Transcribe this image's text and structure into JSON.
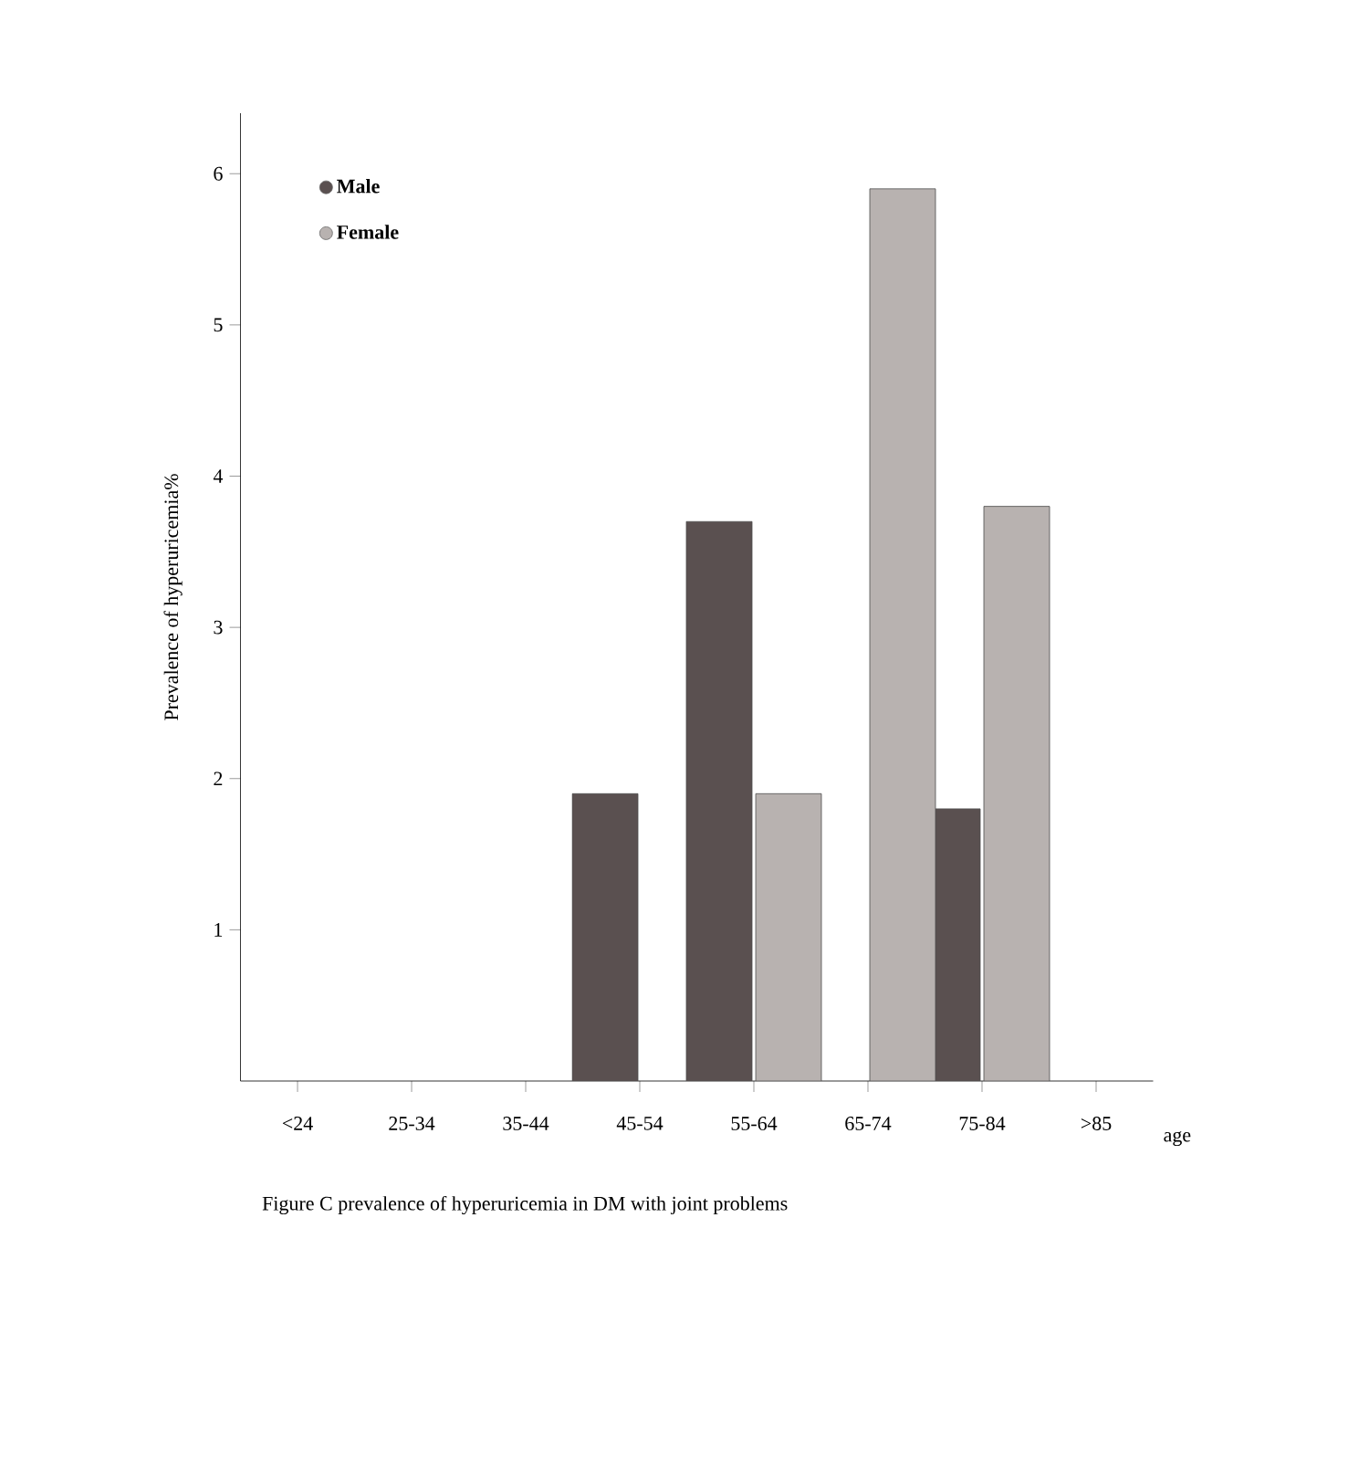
{
  "chart_data": {
    "type": "bar",
    "xlabel": "age",
    "ylabel": "Prevalence of hyperuricemia%",
    "categories": [
      "<24",
      "25-34",
      "35-44",
      "45-54",
      "55-64",
      "65-74",
      "75-84",
      ">85"
    ],
    "series": [
      {
        "name": "Male",
        "color": "#5a5050",
        "values": [
          null,
          null,
          null,
          1.9,
          3.7,
          null,
          1.8,
          null
        ]
      },
      {
        "name": "Female",
        "color": "#b8b2b0",
        "values": [
          null,
          null,
          null,
          null,
          1.9,
          5.9,
          3.8,
          null
        ]
      }
    ],
    "ylim": [
      0,
      6.4
    ],
    "yticks": [
      1,
      2,
      3,
      4,
      5,
      6
    ],
    "legend": "top left",
    "grid": false,
    "annotations": [
      "Figure C  prevalence of hyperuricemia in DM with joint  problems"
    ]
  }
}
